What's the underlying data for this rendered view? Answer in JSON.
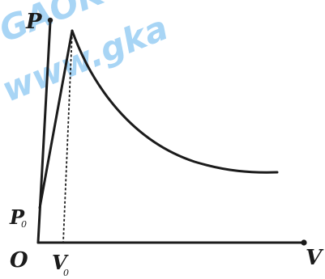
{
  "watermark": {
    "line1": "GAOK",
    "line2": "www.gka",
    "color": "#3fa3ea"
  },
  "labels": {
    "p_axis": "P",
    "origin": "O",
    "v_axis": "V",
    "p0_main": "P",
    "p0_sub": "0",
    "v0_main": "V",
    "v0_sub": "0"
  },
  "colors": {
    "stroke": "#1b1b1b",
    "background": "#ffffff"
  }
}
